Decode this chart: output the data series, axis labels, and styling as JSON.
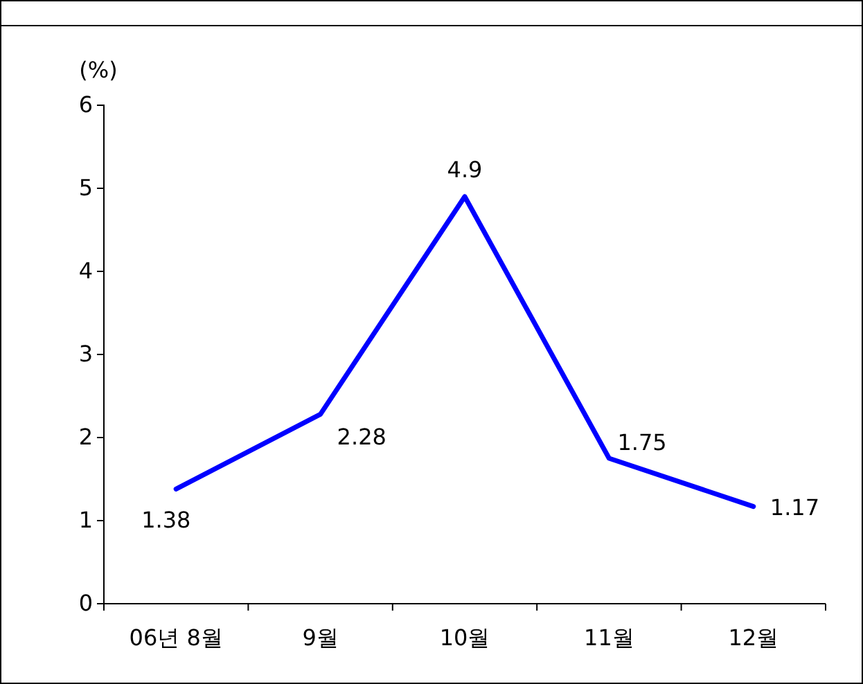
{
  "chart_data": {
    "type": "line",
    "ylabel": "(%)",
    "categories": [
      "06년 8월",
      "9월",
      "10월",
      "11월",
      "12월"
    ],
    "series": [
      {
        "color": "#0000ff",
        "values": [
          1.38,
          2.28,
          4.9,
          1.75,
          1.17
        ]
      }
    ],
    "ylim": [
      0,
      6
    ],
    "yticks": [
      0,
      1,
      2,
      3,
      4,
      5,
      6
    ],
    "grid": false,
    "marker": "none",
    "line_style": "solid",
    "data_labels": true
  }
}
